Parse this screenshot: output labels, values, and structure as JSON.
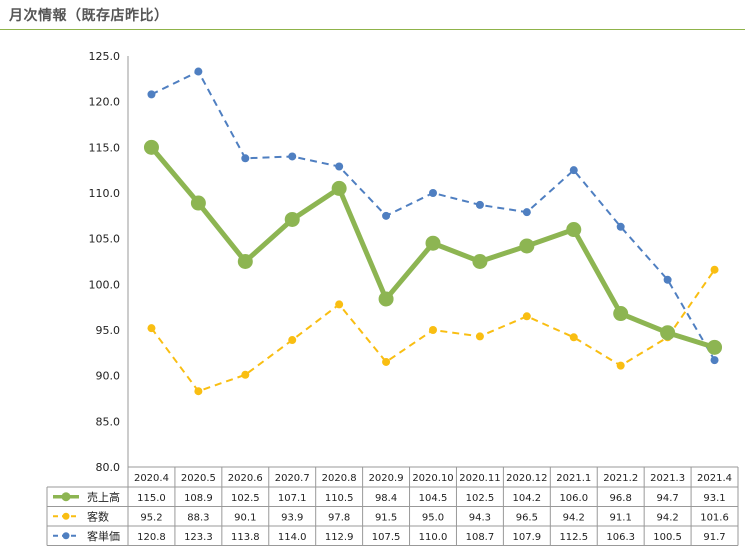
{
  "header": {
    "title": "月次情報（既存店昨比）"
  },
  "colors": {
    "sales": "#8db552",
    "customers": "#f9be12",
    "unit_price": "#4f7fc1",
    "grid": "#999999",
    "header_line": "#8fb34a"
  },
  "chart_data": {
    "type": "line",
    "title": "月次情報（既存店昨比）",
    "categories": [
      "2020.4",
      "2020.5",
      "2020.6",
      "2020.7",
      "2020.8",
      "2020.9",
      "2020.10",
      "2020.11",
      "2020.12",
      "2021.1",
      "2021.2",
      "2021.3",
      "2021.4"
    ],
    "y_ticks": [
      "125.0",
      "120.0",
      "115.0",
      "110.0",
      "105.0",
      "100.0",
      "95.0",
      "90.0",
      "85.0",
      "80.0"
    ],
    "ylim": [
      80,
      125
    ],
    "series": [
      {
        "key": "sales",
        "name": "売上高",
        "style": "solid",
        "values": [
          115.0,
          108.9,
          102.5,
          107.1,
          110.5,
          98.4,
          104.5,
          102.5,
          104.2,
          106.0,
          96.8,
          94.7,
          93.1
        ],
        "labels": [
          "115.0",
          "108.9",
          "102.5",
          "107.1",
          "110.5",
          "98.4",
          "104.5",
          "102.5",
          "104.2",
          "106.0",
          "96.8",
          "94.7",
          "93.1"
        ]
      },
      {
        "key": "customers",
        "name": "客数",
        "style": "dashed",
        "values": [
          95.2,
          88.3,
          90.1,
          93.9,
          97.8,
          91.5,
          95.0,
          94.3,
          96.5,
          94.2,
          91.1,
          94.2,
          101.6
        ],
        "labels": [
          "95.2",
          "88.3",
          "90.1",
          "93.9",
          "97.8",
          "91.5",
          "95.0",
          "94.3",
          "96.5",
          "94.2",
          "91.1",
          "94.2",
          "101.6"
        ]
      },
      {
        "key": "unit_price",
        "name": "客単価",
        "style": "dashed",
        "values": [
          120.8,
          123.3,
          113.8,
          114.0,
          112.9,
          107.5,
          110.0,
          108.7,
          107.9,
          112.5,
          106.3,
          100.5,
          91.7
        ],
        "labels": [
          "120.8",
          "123.3",
          "113.8",
          "114.0",
          "112.9",
          "107.5",
          "110.0",
          "108.7",
          "107.9",
          "112.5",
          "106.3",
          "100.5",
          "91.7"
        ]
      }
    ]
  }
}
